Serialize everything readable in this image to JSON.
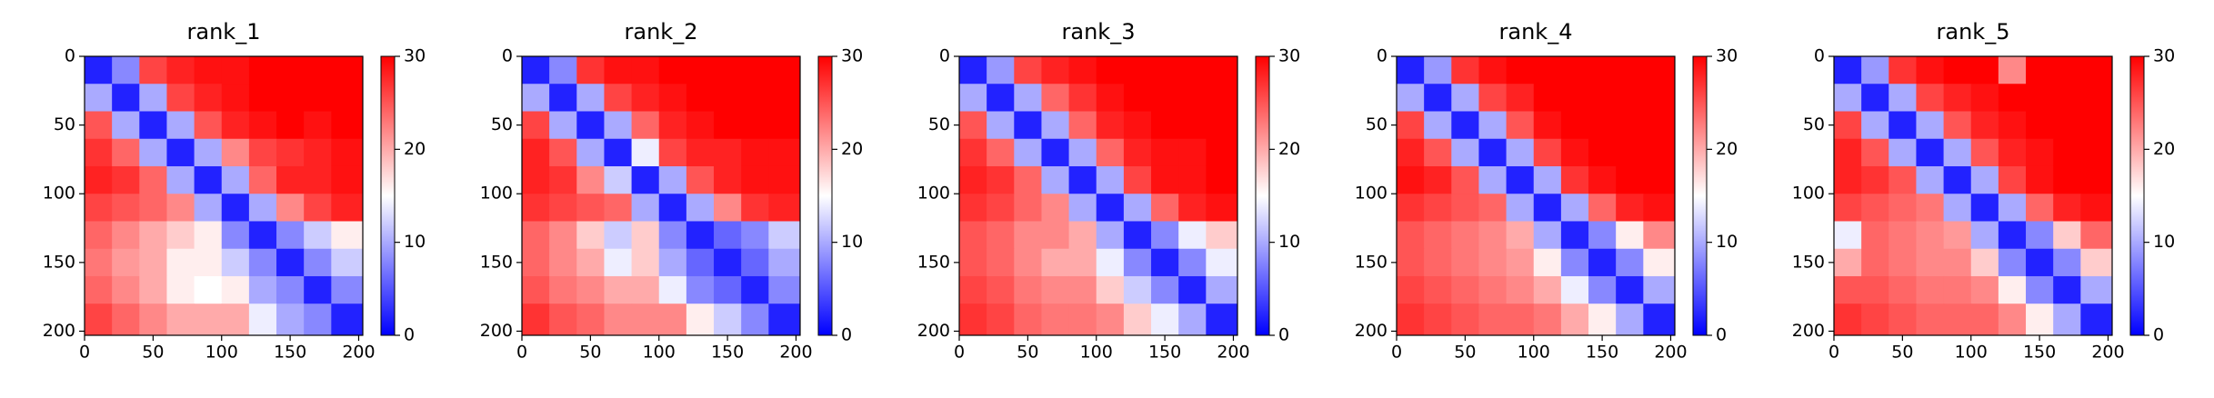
{
  "chart_data": [
    {
      "type": "heatmap",
      "title": "rank_1",
      "cell_edges": [
        0,
        20,
        40,
        60,
        80,
        100,
        120,
        140,
        160,
        180,
        203
      ],
      "values": [
        [
          2,
          8,
          26,
          28,
          29,
          29,
          30,
          30,
          30,
          30
        ],
        [
          10,
          2,
          10,
          26,
          28,
          29,
          30,
          30,
          30,
          30
        ],
        [
          25,
          10,
          2,
          10,
          25,
          28,
          29,
          30,
          29,
          30
        ],
        [
          27,
          24,
          10,
          2,
          10,
          22,
          26,
          27,
          28,
          29
        ],
        [
          28,
          27,
          24,
          10,
          2,
          10,
          24,
          28,
          28,
          29
        ],
        [
          26,
          25,
          24,
          22,
          10,
          2,
          10,
          22,
          26,
          28
        ],
        [
          24,
          22,
          20,
          18,
          16,
          8,
          2,
          8,
          12,
          16
        ],
        [
          23,
          21,
          20,
          16,
          16,
          12,
          8,
          2,
          8,
          12
        ],
        [
          24,
          22,
          20,
          16,
          15,
          16,
          10,
          8,
          2,
          8
        ],
        [
          26,
          24,
          22,
          20,
          20,
          20,
          14,
          10,
          8,
          2
        ]
      ],
      "xlim": [
        0,
        203
      ],
      "ylim": [
        203,
        0
      ],
      "xticks": [
        0,
        50,
        100,
        150,
        200
      ],
      "yticks": [
        0,
        50,
        100,
        150,
        200
      ],
      "colorbar": {
        "lim": [
          0,
          30
        ],
        "ticks": [
          0,
          10,
          20,
          30
        ],
        "colors": [
          "#0000ff",
          "#ffffff",
          "#ff0000"
        ]
      }
    },
    {
      "type": "heatmap",
      "title": "rank_2",
      "cell_edges": [
        0,
        20,
        40,
        60,
        80,
        100,
        120,
        140,
        160,
        180,
        203
      ],
      "values": [
        [
          2,
          8,
          27,
          29,
          29,
          30,
          30,
          30,
          30,
          30
        ],
        [
          10,
          2,
          10,
          26,
          28,
          29,
          30,
          30,
          30,
          30
        ],
        [
          26,
          10,
          2,
          10,
          24,
          28,
          29,
          30,
          30,
          30
        ],
        [
          28,
          25,
          10,
          2,
          14,
          26,
          28,
          28,
          29,
          29
        ],
        [
          28,
          27,
          22,
          12,
          2,
          10,
          25,
          28,
          29,
          29
        ],
        [
          27,
          26,
          25,
          24,
          10,
          2,
          10,
          22,
          27,
          28
        ],
        [
          24,
          22,
          18,
          12,
          18,
          8,
          2,
          6,
          8,
          12
        ],
        [
          24,
          22,
          20,
          14,
          18,
          10,
          6,
          2,
          6,
          10
        ],
        [
          25,
          23,
          22,
          20,
          20,
          14,
          8,
          6,
          2,
          8
        ],
        [
          27,
          25,
          24,
          22,
          22,
          22,
          16,
          12,
          8,
          2
        ]
      ],
      "xlim": [
        0,
        203
      ],
      "ylim": [
        203,
        0
      ],
      "xticks": [
        0,
        50,
        100,
        150,
        200
      ],
      "yticks": [
        0,
        50,
        100,
        150,
        200
      ],
      "colorbar": {
        "lim": [
          0,
          30
        ],
        "ticks": [
          0,
          10,
          20,
          30
        ],
        "colors": [
          "#0000ff",
          "#ffffff",
          "#ff0000"
        ]
      }
    },
    {
      "type": "heatmap",
      "title": "rank_3",
      "cell_edges": [
        0,
        20,
        40,
        60,
        80,
        100,
        120,
        140,
        160,
        180,
        203
      ],
      "values": [
        [
          2,
          9,
          26,
          28,
          29,
          30,
          30,
          30,
          30,
          30
        ],
        [
          10,
          2,
          10,
          24,
          27,
          29,
          30,
          30,
          30,
          30
        ],
        [
          25,
          10,
          2,
          10,
          24,
          28,
          29,
          30,
          30,
          30
        ],
        [
          27,
          24,
          10,
          2,
          10,
          24,
          28,
          29,
          29,
          30
        ],
        [
          28,
          27,
          24,
          10,
          2,
          10,
          26,
          29,
          29,
          30
        ],
        [
          27,
          26,
          24,
          22,
          10,
          2,
          10,
          24,
          28,
          29
        ],
        [
          25,
          24,
          22,
          22,
          20,
          10,
          2,
          8,
          14,
          18
        ],
        [
          25,
          24,
          22,
          20,
          20,
          14,
          8,
          2,
          8,
          14
        ],
        [
          26,
          25,
          23,
          22,
          22,
          18,
          12,
          8,
          2,
          10
        ],
        [
          27,
          26,
          24,
          23,
          23,
          22,
          18,
          14,
          10,
          2
        ]
      ],
      "xlim": [
        0,
        203
      ],
      "ylim": [
        203,
        0
      ],
      "xticks": [
        0,
        50,
        100,
        150,
        200
      ],
      "yticks": [
        0,
        50,
        100,
        150,
        200
      ],
      "colorbar": {
        "lim": [
          0,
          30
        ],
        "ticks": [
          0,
          10,
          20,
          30
        ],
        "colors": [
          "#0000ff",
          "#ffffff",
          "#ff0000"
        ]
      }
    },
    {
      "type": "heatmap",
      "title": "rank_4",
      "cell_edges": [
        0,
        20,
        40,
        60,
        80,
        100,
        120,
        140,
        160,
        180,
        203
      ],
      "values": [
        [
          2,
          9,
          27,
          29,
          30,
          30,
          30,
          30,
          30,
          30
        ],
        [
          10,
          2,
          10,
          26,
          28,
          30,
          30,
          30,
          30,
          30
        ],
        [
          26,
          10,
          2,
          10,
          25,
          29,
          30,
          30,
          30,
          30
        ],
        [
          28,
          25,
          10,
          2,
          10,
          26,
          29,
          30,
          30,
          30
        ],
        [
          29,
          28,
          25,
          10,
          2,
          10,
          27,
          29,
          30,
          30
        ],
        [
          27,
          26,
          25,
          24,
          10,
          2,
          10,
          24,
          28,
          29
        ],
        [
          25,
          24,
          23,
          22,
          20,
          10,
          2,
          8,
          16,
          22
        ],
        [
          25,
          24,
          23,
          22,
          21,
          16,
          8,
          2,
          8,
          16
        ],
        [
          26,
          25,
          24,
          23,
          22,
          20,
          14,
          8,
          2,
          10
        ],
        [
          27,
          26,
          25,
          24,
          24,
          23,
          20,
          16,
          10,
          2
        ]
      ],
      "xlim": [
        0,
        203
      ],
      "ylim": [
        203,
        0
      ],
      "xticks": [
        0,
        50,
        100,
        150,
        200
      ],
      "yticks": [
        0,
        50,
        100,
        150,
        200
      ],
      "colorbar": {
        "lim": [
          0,
          30
        ],
        "ticks": [
          0,
          10,
          20,
          30
        ],
        "colors": [
          "#0000ff",
          "#ffffff",
          "#ff0000"
        ]
      }
    },
    {
      "type": "heatmap",
      "title": "rank_5",
      "cell_edges": [
        0,
        20,
        40,
        60,
        80,
        100,
        120,
        140,
        160,
        180,
        203
      ],
      "values": [
        [
          2,
          9,
          27,
          29,
          30,
          30,
          22,
          30,
          30,
          30
        ],
        [
          10,
          2,
          10,
          26,
          28,
          29,
          30,
          30,
          30,
          30
        ],
        [
          26,
          10,
          2,
          10,
          25,
          28,
          29,
          30,
          30,
          30
        ],
        [
          28,
          25,
          10,
          2,
          10,
          25,
          28,
          29,
          30,
          30
        ],
        [
          28,
          27,
          25,
          10,
          2,
          10,
          26,
          29,
          30,
          30
        ],
        [
          26,
          25,
          24,
          23,
          10,
          2,
          10,
          24,
          28,
          29
        ],
        [
          14,
          24,
          23,
          22,
          21,
          10,
          2,
          8,
          18,
          24
        ],
        [
          20,
          24,
          23,
          22,
          22,
          18,
          8,
          2,
          8,
          18
        ],
        [
          25,
          25,
          24,
          23,
          23,
          22,
          16,
          8,
          2,
          10
        ],
        [
          27,
          26,
          25,
          24,
          24,
          24,
          22,
          16,
          10,
          2
        ]
      ],
      "xlim": [
        0,
        203
      ],
      "ylim": [
        203,
        0
      ],
      "xticks": [
        0,
        50,
        100,
        150,
        200
      ],
      "yticks": [
        0,
        50,
        100,
        150,
        200
      ],
      "colorbar": {
        "lim": [
          0,
          30
        ],
        "ticks": [
          0,
          10,
          20,
          30
        ],
        "colors": [
          "#0000ff",
          "#ffffff",
          "#ff0000"
        ]
      }
    }
  ]
}
